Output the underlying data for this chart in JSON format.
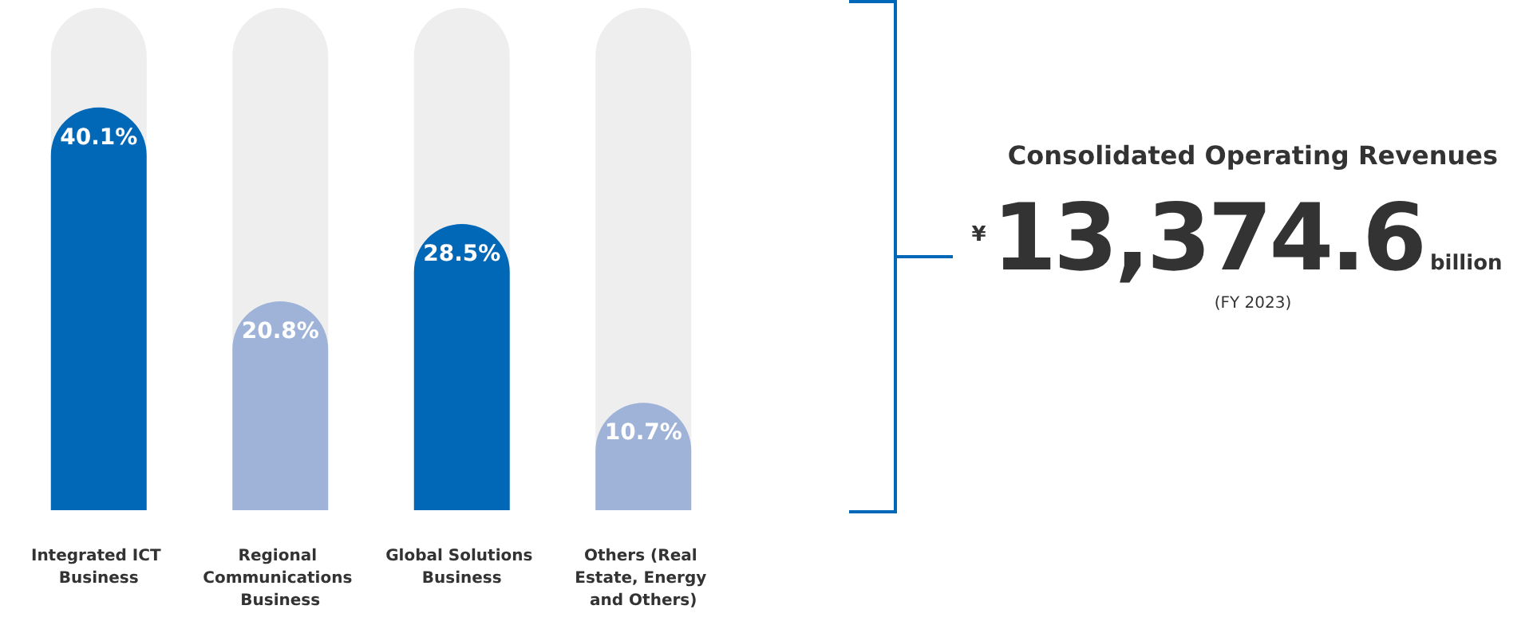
{
  "chart_data": {
    "type": "bar",
    "title": "Consolidated Operating Revenues",
    "categories": [
      "Integrated ICT Business",
      "Regional Communications Business",
      "Global Solutions Business",
      "Others (Real Estate, Energy and Others)"
    ],
    "values": [
      40.1,
      20.8,
      28.5,
      10.7
    ],
    "colors": [
      "#0068b7",
      "#9fb3d9",
      "#0068b7",
      "#9fb3d9"
    ],
    "value_labels": [
      "40.1%",
      "20.8%",
      "28.5%",
      "10.7%"
    ],
    "annotations": [
      "¥",
      "13,374.6",
      "billion",
      "(FY 2023)"
    ]
  }
}
